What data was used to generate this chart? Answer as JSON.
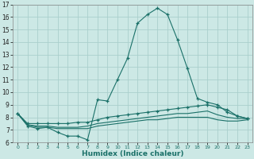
{
  "xlabel": "Humidex (Indice chaleur)",
  "xlim": [
    -0.5,
    23.5
  ],
  "ylim": [
    6,
    17
  ],
  "yticks": [
    6,
    7,
    8,
    9,
    10,
    11,
    12,
    13,
    14,
    15,
    16,
    17
  ],
  "xticks": [
    0,
    1,
    2,
    3,
    4,
    5,
    6,
    7,
    8,
    9,
    10,
    11,
    12,
    13,
    14,
    15,
    16,
    17,
    18,
    19,
    20,
    21,
    22,
    23
  ],
  "background_color": "#cce8e5",
  "grid_color": "#aacfcc",
  "line_color": "#1a7068",
  "curves": [
    {
      "x": [
        0,
        1,
        2,
        3,
        4,
        5,
        6,
        7,
        8,
        9,
        10,
        11,
        12,
        13,
        14,
        15,
        16,
        17,
        18,
        19,
        20,
        21,
        22,
        23
      ],
      "y": [
        8.3,
        7.3,
        7.1,
        7.2,
        6.8,
        6.5,
        6.5,
        6.2,
        9.4,
        9.3,
        11.0,
        12.7,
        15.5,
        16.2,
        16.7,
        16.2,
        14.2,
        11.9,
        9.5,
        9.2,
        9.0,
        8.4,
        8.1,
        7.9
      ],
      "marker": "+"
    },
    {
      "x": [
        0,
        1,
        2,
        3,
        4,
        5,
        6,
        7,
        8,
        9,
        10,
        11,
        12,
        13,
        14,
        15,
        16,
        17,
        18,
        19,
        20,
        21,
        22,
        23
      ],
      "y": [
        8.3,
        7.5,
        7.5,
        7.5,
        7.5,
        7.5,
        7.6,
        7.6,
        7.8,
        8.0,
        8.1,
        8.2,
        8.3,
        8.4,
        8.5,
        8.6,
        8.7,
        8.8,
        8.9,
        9.0,
        8.8,
        8.6,
        8.1,
        7.9
      ],
      "marker": "+"
    },
    {
      "x": [
        0,
        1,
        2,
        3,
        4,
        5,
        6,
        7,
        8,
        9,
        10,
        11,
        12,
        13,
        14,
        15,
        16,
        17,
        18,
        19,
        20,
        21,
        22,
        23
      ],
      "y": [
        8.3,
        7.4,
        7.3,
        7.3,
        7.2,
        7.2,
        7.2,
        7.3,
        7.5,
        7.6,
        7.7,
        7.8,
        7.9,
        8.0,
        8.1,
        8.2,
        8.3,
        8.3,
        8.4,
        8.5,
        8.2,
        8.0,
        7.9,
        7.9
      ],
      "marker": null
    },
    {
      "x": [
        0,
        1,
        2,
        3,
        4,
        5,
        6,
        7,
        8,
        9,
        10,
        11,
        12,
        13,
        14,
        15,
        16,
        17,
        18,
        19,
        20,
        21,
        22,
        23
      ],
      "y": [
        8.3,
        7.4,
        7.2,
        7.2,
        7.1,
        7.1,
        7.1,
        7.1,
        7.3,
        7.4,
        7.5,
        7.6,
        7.7,
        7.8,
        7.8,
        7.9,
        8.0,
        8.0,
        8.0,
        8.0,
        7.8,
        7.7,
        7.7,
        7.8
      ],
      "marker": null
    }
  ]
}
